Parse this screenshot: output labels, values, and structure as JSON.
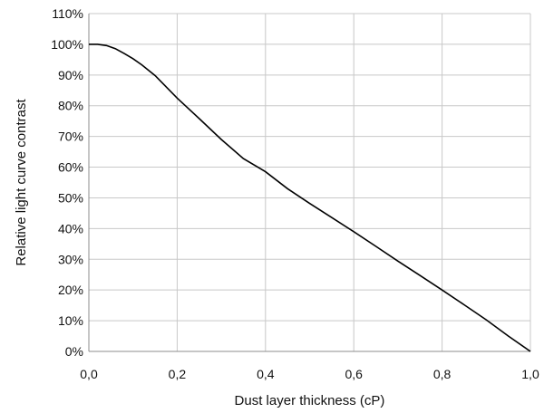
{
  "chart_data": {
    "type": "line",
    "title": "",
    "xlabel": "Dust layer thickness (cP)",
    "ylabel": "Relative light curve contrast",
    "xlim": [
      0,
      1
    ],
    "ylim": [
      0,
      110
    ],
    "x_ticks": [
      0,
      0.2,
      0.4,
      0.6,
      0.8,
      1.0
    ],
    "x_tick_labels": [
      "0,0",
      "0,2",
      "0,4",
      "0,6",
      "0,8",
      "1,0"
    ],
    "y_ticks": [
      0,
      10,
      20,
      30,
      40,
      50,
      60,
      70,
      80,
      90,
      100,
      110
    ],
    "y_tick_labels": [
      "0%",
      "10%",
      "20%",
      "30%",
      "40%",
      "50%",
      "60%",
      "70%",
      "80%",
      "90%",
      "100%",
      "110%"
    ],
    "grid": true,
    "legend": "none",
    "series": [
      {
        "color": "#000000",
        "x": [
          0,
          0.02,
          0.04,
          0.06,
          0.08,
          0.1,
          0.12,
          0.15,
          0.2,
          0.25,
          0.3,
          0.35,
          0.4,
          0.45,
          0.5,
          0.55,
          0.6,
          0.65,
          0.7,
          0.75,
          0.8,
          0.85,
          0.9,
          0.95,
          1.0
        ],
        "y": [
          100,
          100,
          99.6,
          98.6,
          97.0,
          95.3,
          93.3,
          89.8,
          82.5,
          75.8,
          69.0,
          62.8,
          58.5,
          53.0,
          48.2,
          43.6,
          39.0,
          34.2,
          29.4,
          24.7,
          20.0,
          15.2,
          10.3,
          5.0,
          0
        ]
      }
    ]
  }
}
